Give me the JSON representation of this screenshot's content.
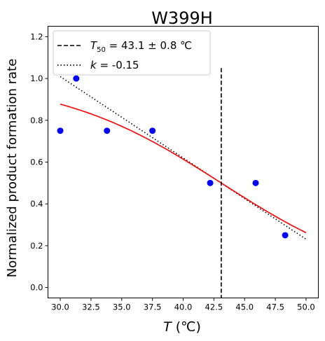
{
  "chart_data": {
    "type": "scatter",
    "title": "W399H",
    "xlabel_italic": "T",
    "xlabel_rest": " (℃)",
    "ylabel": "Normalized product formation rate",
    "xlim": [
      29.0,
      51.0
    ],
    "ylim": [
      -0.05,
      1.25
    ],
    "xticks": [
      30.0,
      32.5,
      35.0,
      37.5,
      40.0,
      42.5,
      45.0,
      47.5,
      50.0
    ],
    "xtick_labels": [
      "30.0",
      "32.5",
      "35.0",
      "37.5",
      "40.0",
      "42.5",
      "45.0",
      "47.5",
      "50.0"
    ],
    "yticks": [
      0.0,
      0.2,
      0.4,
      0.6,
      0.8,
      1.0,
      1.2
    ],
    "ytick_labels": [
      "0.0",
      "0.2",
      "0.4",
      "0.6",
      "0.8",
      "1.0",
      "1.2"
    ],
    "grid": false,
    "legend_placement": "top-left",
    "points": {
      "color": "#0000ff",
      "x": [
        30.0,
        31.3,
        33.8,
        37.5,
        42.2,
        45.9,
        48.3
      ],
      "y": [
        0.75,
        1.0,
        0.75,
        0.75,
        0.5,
        0.5,
        0.25
      ]
    },
    "fit_curve": {
      "color": "#ff0000",
      "x_range": [
        30.0,
        50.0
      ],
      "t50": 43.1,
      "k": -0.15,
      "amplitude": 1.0
    },
    "t50_line": {
      "x": 43.1,
      "y_range": [
        -0.05,
        1.05
      ],
      "style": "dashed",
      "legend_prefix": "T",
      "legend_sub": "50",
      "legend_suffix": " = 43.1 ± 0.8 ℃"
    },
    "slope_line": {
      "style": "dotted",
      "x_range": [
        30.0,
        50.0
      ],
      "slope_per_degree": -0.0389,
      "y_at_x0": 1.009,
      "legend_prefix": "k",
      "legend_suffix": " = -0.15"
    }
  }
}
